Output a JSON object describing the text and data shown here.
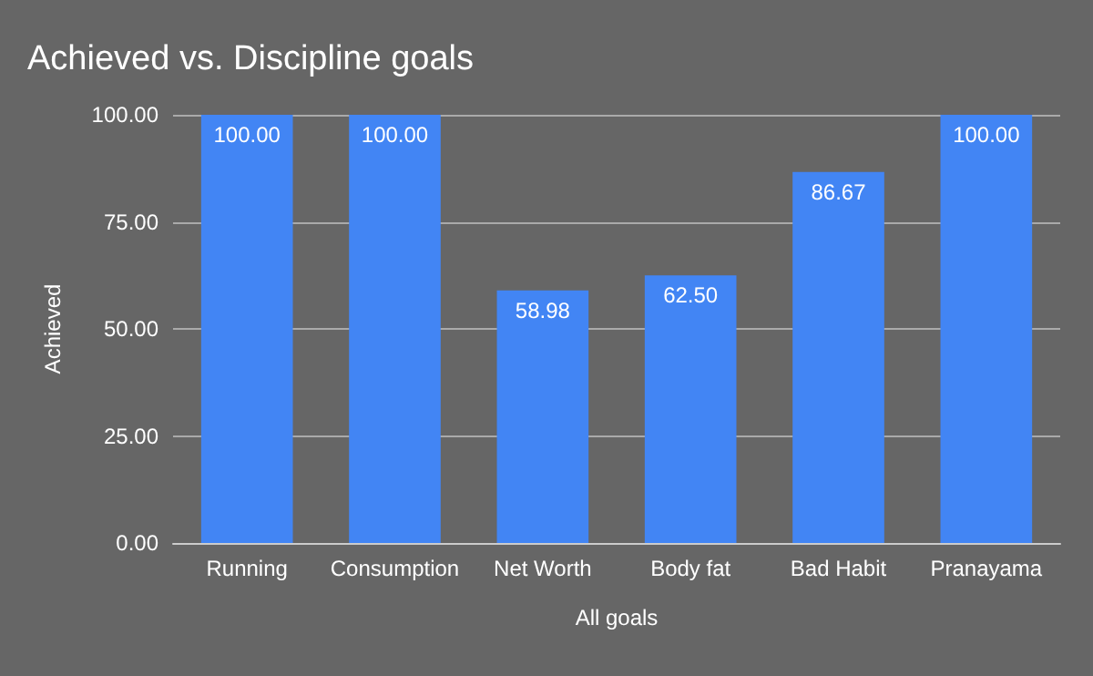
{
  "chart_data": {
    "type": "bar",
    "title": "Achieved vs. Discipline goals",
    "xlabel": "All goals",
    "ylabel": "Achieved",
    "categories": [
      "Running",
      "Consumption",
      "Net Worth",
      "Body fat",
      "Bad Habit",
      "Pranayama"
    ],
    "values": [
      100,
      100,
      58.98,
      62.5,
      86.67,
      100
    ],
    "value_labels": [
      "100.00",
      "100.00",
      "58.98",
      "62.50",
      "86.67",
      "100.00"
    ],
    "color": "#4285f4",
    "ylim": [
      0,
      100
    ],
    "yticks": [
      {
        "value": 0,
        "label": "0.00"
      },
      {
        "value": 25,
        "label": "25.00"
      },
      {
        "value": 50,
        "label": "50.00"
      },
      {
        "value": 75,
        "label": "75.00"
      },
      {
        "value": 100,
        "label": "100.00"
      }
    ],
    "grid": "y"
  }
}
